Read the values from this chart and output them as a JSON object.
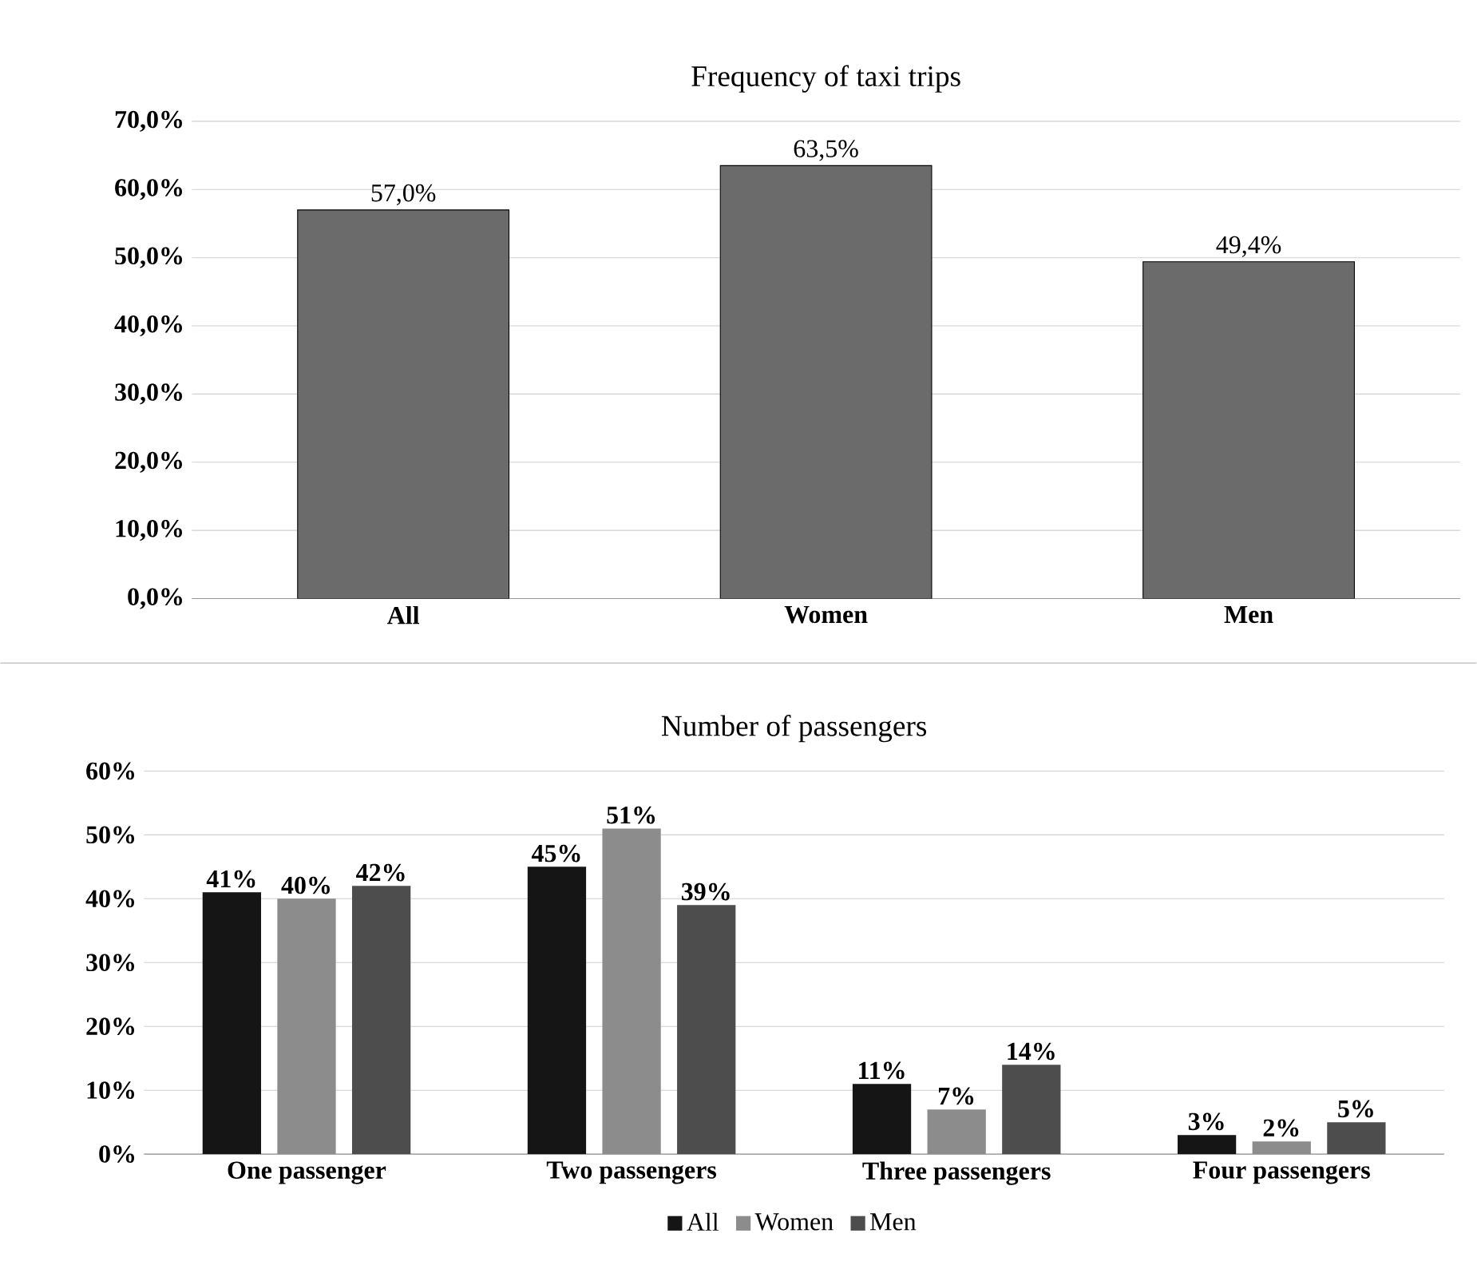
{
  "chart_data": [
    {
      "type": "bar",
      "title": "Frequency of taxi trips",
      "categories": [
        "All",
        "Women",
        "Men"
      ],
      "values": [
        57.0,
        63.5,
        49.4
      ],
      "color": "#6b6b6b",
      "value_labels": [
        "57,0%",
        "63,5%",
        "49,4%"
      ],
      "ylim": [
        0,
        70
      ],
      "yticks": [
        {
          "value": 0,
          "label": "0,0%"
        },
        {
          "value": 10,
          "label": "10,0%"
        },
        {
          "value": 20,
          "label": "20,0%"
        },
        {
          "value": 30,
          "label": "30,0%"
        },
        {
          "value": 40,
          "label": "40,0%"
        },
        {
          "value": 50,
          "label": "50,0%"
        },
        {
          "value": 60,
          "label": "60,0%"
        },
        {
          "value": 70,
          "label": "70,0%"
        }
      ],
      "grid": "y"
    },
    {
      "type": "bar",
      "title": "Number of passengers",
      "categories": [
        "One passenger",
        "Two passengers",
        "Three passengers",
        "Four passengers"
      ],
      "series": [
        {
          "name": "All",
          "color": "#151515",
          "values": [
            41,
            45,
            11,
            3
          ],
          "value_labels": [
            "41%",
            "45%",
            "11%",
            "3%"
          ]
        },
        {
          "name": "Women",
          "color": "#8c8c8c",
          "values": [
            40,
            51,
            7,
            2
          ],
          "value_labels": [
            "40%",
            "51%",
            "7%",
            "2%"
          ]
        },
        {
          "name": "Men",
          "color": "#4d4d4d",
          "values": [
            42,
            39,
            14,
            5
          ],
          "value_labels": [
            "42%",
            "39%",
            "14%",
            "5%"
          ]
        }
      ],
      "ylim": [
        0,
        60
      ],
      "yticks": [
        {
          "value": 0,
          "label": "0%"
        },
        {
          "value": 10,
          "label": "10%"
        },
        {
          "value": 20,
          "label": "20%"
        },
        {
          "value": 30,
          "label": "30%"
        },
        {
          "value": 40,
          "label": "40%"
        },
        {
          "value": 50,
          "label": "50%"
        },
        {
          "value": 60,
          "label": "60%"
        }
      ],
      "grid": "y",
      "legend": "bottom"
    }
  ]
}
